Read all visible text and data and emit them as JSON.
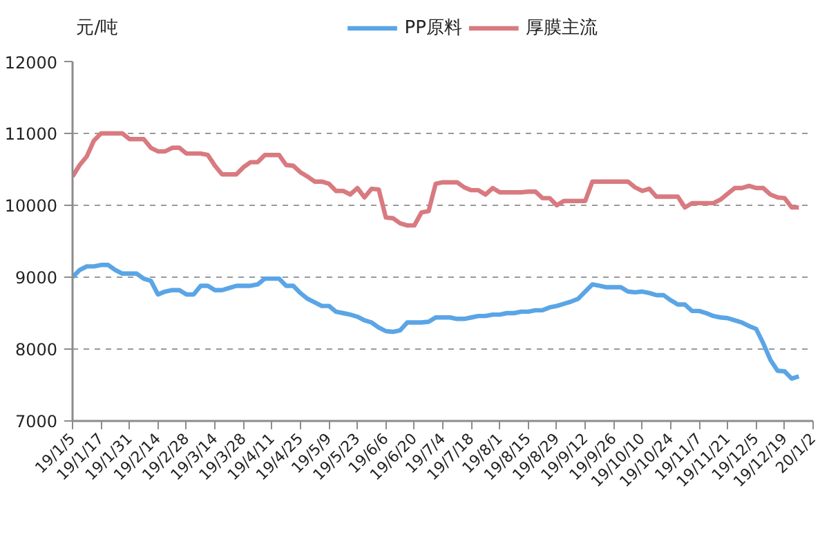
{
  "chart_data": {
    "type": "line",
    "ylabel": "元/吨",
    "categories": [
      "19/1/5",
      null,
      null,
      null,
      "19/1/17",
      null,
      null,
      null,
      "19/1/31",
      null,
      null,
      null,
      "19/2/14",
      null,
      null,
      null,
      "19/2/28",
      null,
      null,
      null,
      "19/3/14",
      null,
      null,
      null,
      "19/3/28",
      null,
      null,
      null,
      "19/4/11",
      null,
      null,
      null,
      "19/4/25",
      null,
      null,
      null,
      "19/5/9",
      null,
      null,
      null,
      "19/5/23",
      null,
      null,
      null,
      "19/6/6",
      null,
      null,
      null,
      "19/6/20",
      null,
      null,
      null,
      "19/7/4",
      null,
      null,
      null,
      "19/7/18",
      null,
      null,
      null,
      "19/8/1",
      null,
      null,
      null,
      "19/8/15",
      null,
      null,
      null,
      "19/8/29",
      null,
      null,
      null,
      "19/9/12",
      null,
      null,
      null,
      "19/9/26",
      null,
      null,
      null,
      "19/10/10",
      null,
      null,
      null,
      "19/10/24",
      null,
      null,
      null,
      "19/11/7",
      null,
      null,
      null,
      "19/11/21",
      null,
      null,
      null,
      "19/12/5",
      null,
      null,
      null,
      "19/12/19",
      null,
      null,
      null,
      "20/1/2"
    ],
    "series": [
      {
        "name": "PP原料",
        "color": "#5aa5e6",
        "values": [
          9000,
          9100,
          9150,
          9150,
          9170,
          9170,
          9100,
          9050,
          9050,
          9050,
          8980,
          8950,
          8760,
          8800,
          8820,
          8820,
          8760,
          8760,
          8880,
          8880,
          8820,
          8820,
          8850,
          8880,
          8880,
          8880,
          8900,
          8980,
          8980,
          8980,
          8880,
          8880,
          8780,
          8700,
          8650,
          8600,
          8600,
          8520,
          8500,
          8480,
          8450,
          8400,
          8370,
          8300,
          8250,
          8240,
          8260,
          8370,
          8370,
          8370,
          8380,
          8440,
          8440,
          8440,
          8420,
          8420,
          8440,
          8460,
          8460,
          8480,
          8480,
          8500,
          8500,
          8520,
          8520,
          8540,
          8540,
          8580,
          8600,
          8630,
          8660,
          8700,
          8800,
          8900,
          8880,
          8860,
          8860,
          8860,
          8800,
          8790,
          8800,
          8780,
          8750,
          8750,
          8680,
          8620,
          8620,
          8530,
          8530,
          8500,
          8460,
          8440,
          8430,
          8400,
          8370,
          8320,
          8280,
          8080,
          7850,
          7700,
          7690,
          7590,
          7620,
          null,
          null
        ]
      },
      {
        "name": "厚膜主流",
        "color": "#d87a80",
        "values": [
          10400,
          10560,
          10680,
          10900,
          11000,
          11000,
          11000,
          11000,
          10920,
          10920,
          10920,
          10800,
          10750,
          10750,
          10800,
          10800,
          10720,
          10720,
          10720,
          10700,
          10550,
          10430,
          10430,
          10430,
          10530,
          10600,
          10600,
          10700,
          10700,
          10700,
          10560,
          10550,
          10460,
          10400,
          10330,
          10330,
          10300,
          10200,
          10200,
          10150,
          10240,
          10110,
          10230,
          10220,
          9830,
          9820,
          9750,
          9720,
          9720,
          9900,
          9920,
          10300,
          10320,
          10320,
          10320,
          10250,
          10210,
          10210,
          10150,
          10240,
          10180,
          10180,
          10180,
          10180,
          10190,
          10190,
          10100,
          10100,
          10000,
          10060,
          10060,
          10060,
          10060,
          10330,
          10330,
          10330,
          10330,
          10330,
          10330,
          10250,
          10200,
          10230,
          10120,
          10120,
          10120,
          10120,
          9970,
          10030,
          10030,
          10030,
          10030,
          10080,
          10160,
          10240,
          10240,
          10270,
          10240,
          10240,
          10150,
          10110,
          10100,
          9970,
          9970,
          null,
          null
        ]
      }
    ],
    "ylim": [
      7000,
      12000
    ],
    "yticks": [
      7000,
      8000,
      9000,
      10000,
      11000,
      12000
    ],
    "grid": "y",
    "legend": "top"
  }
}
